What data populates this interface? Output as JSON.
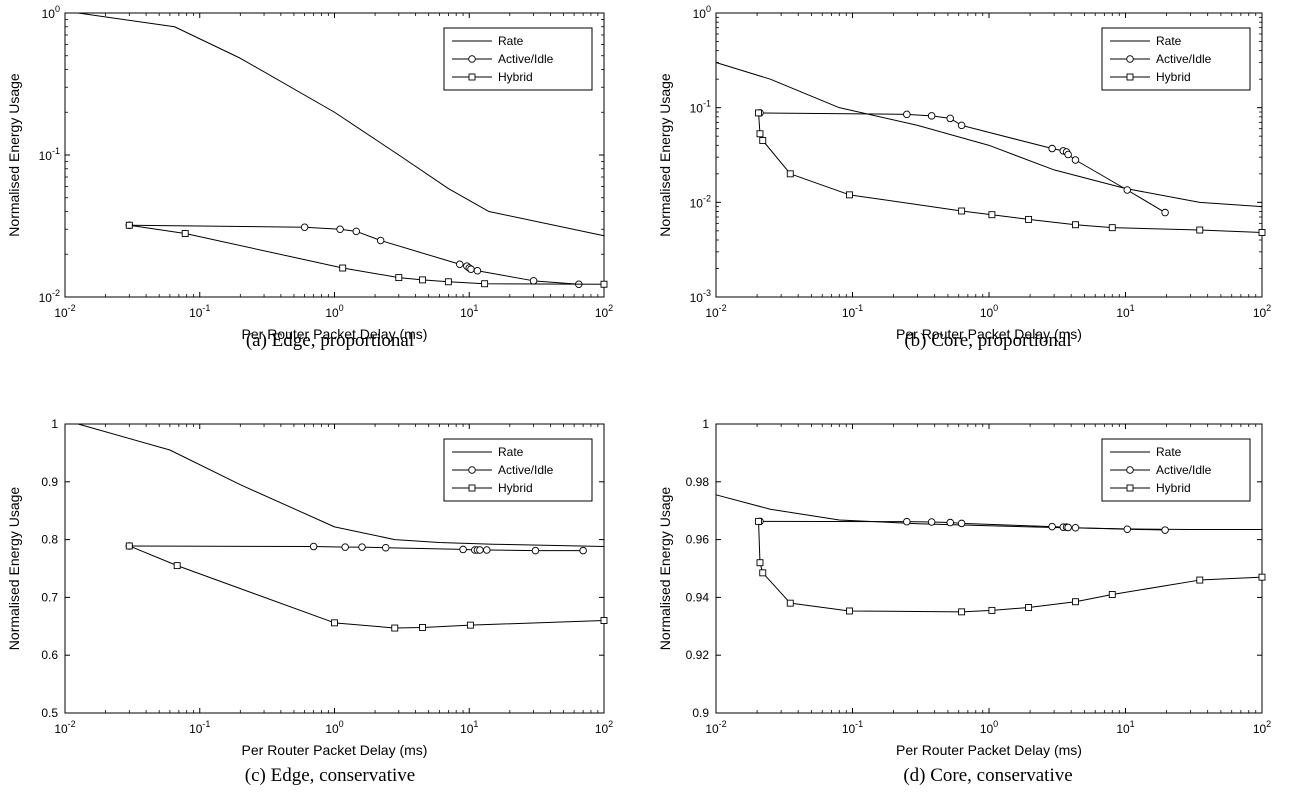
{
  "chart_data": [
    {
      "type": "line",
      "caption": "(a) Edge, proportional",
      "xlabel": "Per Router Packet Delay (ms)",
      "ylabel": "Normalised Energy Usage",
      "xscale": "log",
      "yscale": "log",
      "xlim": [
        0.01,
        100
      ],
      "ylim": [
        0.01,
        1
      ],
      "xticks": [
        {
          "base": "10",
          "exp": "-2"
        },
        {
          "base": "10",
          "exp": "-1"
        },
        {
          "base": "10",
          "exp": "0"
        },
        {
          "base": "10",
          "exp": "1"
        },
        {
          "base": "10",
          "exp": "2"
        }
      ],
      "yticks": [
        {
          "base": "10",
          "exp": "-2"
        },
        {
          "base": "10",
          "exp": "-1"
        },
        {
          "base": "10",
          "exp": "0"
        }
      ],
      "legend_position": "top-right",
      "series": [
        {
          "name": "Rate",
          "marker": "none",
          "x": [
            0.0125,
            0.065,
            0.2,
            1.0,
            3.0,
            7.0,
            14.0,
            100
          ],
          "y": [
            1.0,
            0.8,
            0.48,
            0.2,
            0.1,
            0.058,
            0.04,
            0.027
          ]
        },
        {
          "name": "Active/Idle",
          "marker": "circle",
          "x": [
            0.03,
            0.6,
            1.1,
            1.45,
            2.2,
            8.5,
            9.6,
            10.0,
            10.3,
            11.5,
            30,
            65
          ],
          "y": [
            0.032,
            0.031,
            0.03,
            0.029,
            0.025,
            0.017,
            0.0165,
            0.016,
            0.0157,
            0.0153,
            0.013,
            0.0123
          ]
        },
        {
          "name": "Hybrid",
          "marker": "square",
          "x": [
            0.03,
            0.078,
            1.15,
            3.0,
            4.5,
            7.0,
            13.0,
            100
          ],
          "y": [
            0.032,
            0.028,
            0.016,
            0.0137,
            0.0132,
            0.0128,
            0.0124,
            0.0123
          ]
        }
      ]
    },
    {
      "type": "line",
      "caption": "(b) Core, proportional",
      "xlabel": "Per Router Packet Delay (ms)",
      "ylabel": "Normalised Energy Usage",
      "xscale": "log",
      "yscale": "log",
      "xlim": [
        0.01,
        100
      ],
      "ylim": [
        0.001,
        1
      ],
      "xticks": [
        {
          "base": "10",
          "exp": "-2"
        },
        {
          "base": "10",
          "exp": "-1"
        },
        {
          "base": "10",
          "exp": "0"
        },
        {
          "base": "10",
          "exp": "1"
        },
        {
          "base": "10",
          "exp": "2"
        }
      ],
      "yticks": [
        {
          "base": "10",
          "exp": "-3"
        },
        {
          "base": "10",
          "exp": "-2"
        },
        {
          "base": "10",
          "exp": "-1"
        },
        {
          "base": "10",
          "exp": "0"
        }
      ],
      "legend_position": "top-right",
      "series": [
        {
          "name": "Rate",
          "marker": "none",
          "x": [
            0.01,
            0.025,
            0.08,
            0.3,
            1.0,
            3.0,
            10,
            35,
            100
          ],
          "y": [
            0.3,
            0.2,
            0.1,
            0.065,
            0.04,
            0.022,
            0.014,
            0.01,
            0.009
          ]
        },
        {
          "name": "Active/Idle",
          "marker": "circle",
          "x": [
            0.021,
            0.25,
            0.38,
            0.52,
            0.63,
            2.9,
            3.5,
            3.7,
            3.8,
            4.3,
            10.3,
            19.5
          ],
          "y": [
            0.088,
            0.085,
            0.082,
            0.077,
            0.065,
            0.037,
            0.035,
            0.034,
            0.032,
            0.028,
            0.0135,
            0.0078
          ]
        },
        {
          "name": "Hybrid",
          "marker": "square",
          "x": [
            0.0205,
            0.021,
            0.022,
            0.035,
            0.095,
            0.63,
            1.05,
            1.95,
            4.3,
            8.0,
            35,
            100
          ],
          "y": [
            0.088,
            0.053,
            0.045,
            0.02,
            0.012,
            0.0081,
            0.0074,
            0.0066,
            0.0058,
            0.0054,
            0.0051,
            0.0048
          ]
        }
      ]
    },
    {
      "type": "line",
      "caption": "(c) Edge, conservative",
      "xlabel": "Per Router Packet Delay (ms)",
      "ylabel": "Normalised Energy Usage",
      "xscale": "log",
      "yscale": "linear",
      "xlim": [
        0.01,
        100
      ],
      "ylim": [
        0.5,
        1
      ],
      "xticks": [
        {
          "base": "10",
          "exp": "-2"
        },
        {
          "base": "10",
          "exp": "-1"
        },
        {
          "base": "10",
          "exp": "0"
        },
        {
          "base": "10",
          "exp": "1"
        },
        {
          "base": "10",
          "exp": "2"
        }
      ],
      "yticks": [
        {
          "value": 0.5,
          "label": "0.5"
        },
        {
          "value": 0.6,
          "label": "0.6"
        },
        {
          "value": 0.7,
          "label": "0.7"
        },
        {
          "value": 0.8,
          "label": "0.8"
        },
        {
          "value": 0.9,
          "label": "0.9"
        },
        {
          "value": 1,
          "label": "1"
        }
      ],
      "legend_position": "top-right",
      "series": [
        {
          "name": "Rate",
          "marker": "none",
          "x": [
            0.0125,
            0.06,
            0.2,
            1.0,
            2.8,
            6.0,
            15,
            100
          ],
          "y": [
            1.0,
            0.955,
            0.895,
            0.822,
            0.8,
            0.795,
            0.792,
            0.788
          ]
        },
        {
          "name": "Active/Idle",
          "marker": "circle",
          "x": [
            0.03,
            0.7,
            1.2,
            1.6,
            2.4,
            9.0,
            11.0,
            11.5,
            12.0,
            13.5,
            31,
            70
          ],
          "y": [
            0.789,
            0.788,
            0.787,
            0.787,
            0.786,
            0.783,
            0.782,
            0.782,
            0.782,
            0.782,
            0.781,
            0.781
          ]
        },
        {
          "name": "Hybrid",
          "marker": "square",
          "x": [
            0.03,
            0.068,
            1.0,
            2.8,
            4.5,
            10.2,
            100
          ],
          "y": [
            0.789,
            0.755,
            0.656,
            0.647,
            0.648,
            0.652,
            0.66
          ]
        }
      ]
    },
    {
      "type": "line",
      "caption": "(d) Core, conservative",
      "xlabel": "Per Router Packet Delay (ms)",
      "ylabel": "Normalised Energy Usage",
      "xscale": "log",
      "yscale": "linear",
      "xlim": [
        0.01,
        100
      ],
      "ylim": [
        0.9,
        1
      ],
      "xticks": [
        {
          "base": "10",
          "exp": "-2"
        },
        {
          "base": "10",
          "exp": "-1"
        },
        {
          "base": "10",
          "exp": "0"
        },
        {
          "base": "10",
          "exp": "1"
        },
        {
          "base": "10",
          "exp": "2"
        }
      ],
      "yticks": [
        {
          "value": 0.9,
          "label": "0.9"
        },
        {
          "value": 0.92,
          "label": "0.92"
        },
        {
          "value": 0.94,
          "label": "0.94"
        },
        {
          "value": 0.96,
          "label": "0.96"
        },
        {
          "value": 0.98,
          "label": "0.98"
        },
        {
          "value": 1,
          "label": "1"
        }
      ],
      "legend_position": "top-right",
      "series": [
        {
          "name": "Rate",
          "marker": "none",
          "x": [
            0.01,
            0.025,
            0.08,
            0.3,
            1.0,
            3.0,
            10,
            30,
            100
          ],
          "y": [
            0.9755,
            0.9705,
            0.9668,
            0.9655,
            0.9648,
            0.9642,
            0.9637,
            0.9635,
            0.9635
          ]
        },
        {
          "name": "Active/Idle",
          "marker": "circle",
          "x": [
            0.021,
            0.25,
            0.38,
            0.52,
            0.63,
            2.9,
            3.5,
            3.7,
            3.8,
            4.3,
            10.3,
            19.5
          ],
          "y": [
            0.9663,
            0.9662,
            0.9661,
            0.9659,
            0.9656,
            0.9645,
            0.9643,
            0.9643,
            0.9642,
            0.9641,
            0.9636,
            0.9633
          ]
        },
        {
          "name": "Hybrid",
          "marker": "square",
          "x": [
            0.0205,
            0.021,
            0.022,
            0.035,
            0.095,
            0.63,
            1.05,
            1.95,
            4.3,
            8.0,
            35,
            100
          ],
          "y": [
            0.9663,
            0.952,
            0.9485,
            0.938,
            0.9353,
            0.935,
            0.9355,
            0.9365,
            0.9385,
            0.941,
            0.946,
            0.947
          ]
        }
      ]
    }
  ]
}
